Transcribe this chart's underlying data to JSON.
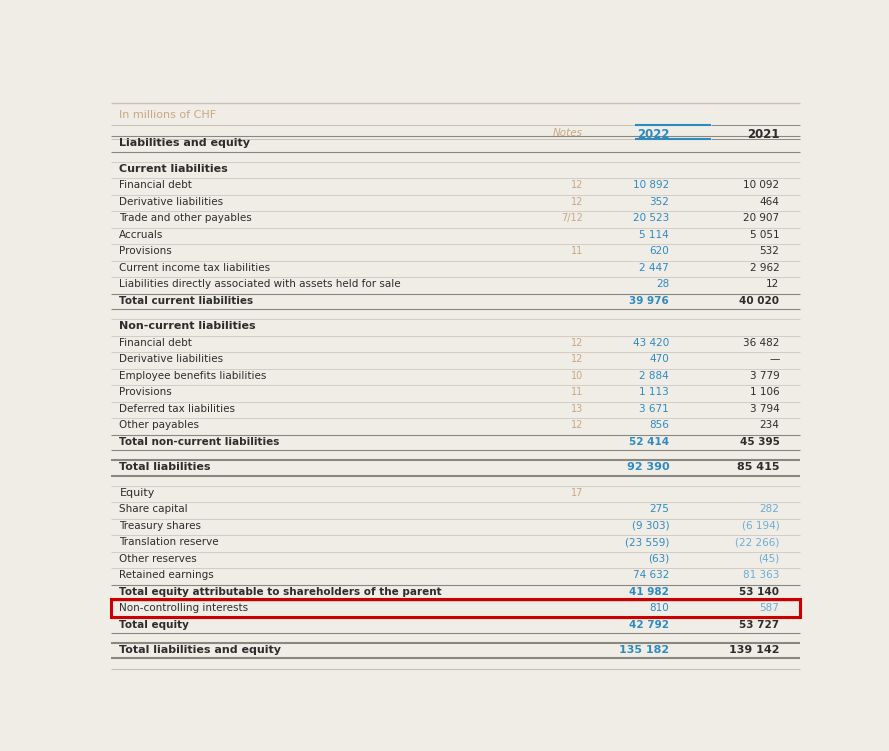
{
  "title": "In millions of CHF",
  "col_notes": "Notes",
  "col_2022": "2022",
  "col_2021": "2021",
  "bg_color": "#f0ece6",
  "header_color": "#c8a882",
  "blue_color": "#2e8bc0",
  "blue2021_color": "#6baed6",
  "dark_color": "#2d2d2d",
  "red_highlight": "#cc0000",
  "rows": [
    {
      "label": "Liabilities and equity",
      "notes": "",
      "v2022": "",
      "v2021": "",
      "type": "section_header",
      "bold": true
    },
    {
      "label": "",
      "notes": "",
      "v2022": "",
      "v2021": "",
      "type": "spacer"
    },
    {
      "label": "Current liabilities",
      "notes": "",
      "v2022": "",
      "v2021": "",
      "type": "subsection_header",
      "bold": true
    },
    {
      "label": "Financial debt",
      "notes": "12",
      "v2022": "10 892",
      "v2021": "10 092",
      "type": "data"
    },
    {
      "label": "Derivative liabilities",
      "notes": "12",
      "v2022": "352",
      "v2021": "464",
      "type": "data"
    },
    {
      "label": "Trade and other payables",
      "notes": "7/12",
      "v2022": "20 523",
      "v2021": "20 907",
      "type": "data"
    },
    {
      "label": "Accruals",
      "notes": "",
      "v2022": "5 114",
      "v2021": "5 051",
      "type": "data"
    },
    {
      "label": "Provisions",
      "notes": "11",
      "v2022": "620",
      "v2021": "532",
      "type": "data"
    },
    {
      "label": "Current income tax liabilities",
      "notes": "",
      "v2022": "2 447",
      "v2021": "2 962",
      "type": "data"
    },
    {
      "label": "Liabilities directly associated with assets held for sale",
      "notes": "",
      "v2022": "28",
      "v2021": "12",
      "type": "data"
    },
    {
      "label": "Total current liabilities",
      "notes": "",
      "v2022": "39 976",
      "v2021": "40 020",
      "type": "total"
    },
    {
      "label": "",
      "notes": "",
      "v2022": "",
      "v2021": "",
      "type": "spacer"
    },
    {
      "label": "Non-current liabilities",
      "notes": "",
      "v2022": "",
      "v2021": "",
      "type": "subsection_header",
      "bold": true
    },
    {
      "label": "Financial debt",
      "notes": "12",
      "v2022": "43 420",
      "v2021": "36 482",
      "type": "data"
    },
    {
      "label": "Derivative liabilities",
      "notes": "12",
      "v2022": "470",
      "v2021": "—",
      "type": "data"
    },
    {
      "label": "Employee benefits liabilities",
      "notes": "10",
      "v2022": "2 884",
      "v2021": "3 779",
      "type": "data"
    },
    {
      "label": "Provisions",
      "notes": "11",
      "v2022": "1 113",
      "v2021": "1 106",
      "type": "data"
    },
    {
      "label": "Deferred tax liabilities",
      "notes": "13",
      "v2022": "3 671",
      "v2021": "3 794",
      "type": "data"
    },
    {
      "label": "Other payables",
      "notes": "12",
      "v2022": "856",
      "v2021": "234",
      "type": "data"
    },
    {
      "label": "Total non-current liabilities",
      "notes": "",
      "v2022": "52 414",
      "v2021": "45 395",
      "type": "total"
    },
    {
      "label": "",
      "notes": "",
      "v2022": "",
      "v2021": "",
      "type": "spacer"
    },
    {
      "label": "Total liabilities",
      "notes": "",
      "v2022": "92 390",
      "v2021": "85 415",
      "type": "grand_total"
    },
    {
      "label": "",
      "notes": "",
      "v2022": "",
      "v2021": "",
      "type": "spacer"
    },
    {
      "label": "Equity",
      "notes": "17",
      "v2022": "",
      "v2021": "",
      "type": "subsection_header",
      "bold": false
    },
    {
      "label": "Share capital",
      "notes": "",
      "v2022": "275",
      "v2021": "282",
      "type": "equity_data"
    },
    {
      "label": "Treasury shares",
      "notes": "",
      "v2022": "(9 303)",
      "v2021": "(6 194)",
      "type": "equity_data"
    },
    {
      "label": "Translation reserve",
      "notes": "",
      "v2022": "(23 559)",
      "v2021": "(22 266)",
      "type": "equity_data"
    },
    {
      "label": "Other reserves",
      "notes": "",
      "v2022": "(63)",
      "v2021": "(45)",
      "type": "equity_data"
    },
    {
      "label": "Retained earnings",
      "notes": "",
      "v2022": "74 632",
      "v2021": "81 363",
      "type": "equity_data"
    },
    {
      "label": "Total equity attributable to shareholders of the parent",
      "notes": "",
      "v2022": "41 982",
      "v2021": "53 140",
      "type": "total"
    },
    {
      "label": "Non-controlling interests",
      "notes": "",
      "v2022": "810",
      "v2021": "587",
      "type": "highlighted"
    },
    {
      "label": "Total equity",
      "notes": "",
      "v2022": "42 792",
      "v2021": "53 727",
      "type": "total"
    },
    {
      "label": "",
      "notes": "",
      "v2022": "",
      "v2021": "",
      "type": "spacer"
    },
    {
      "label": "Total liabilities and equity",
      "notes": "",
      "v2022": "135 182",
      "v2021": "139 142",
      "type": "grand_total"
    }
  ]
}
